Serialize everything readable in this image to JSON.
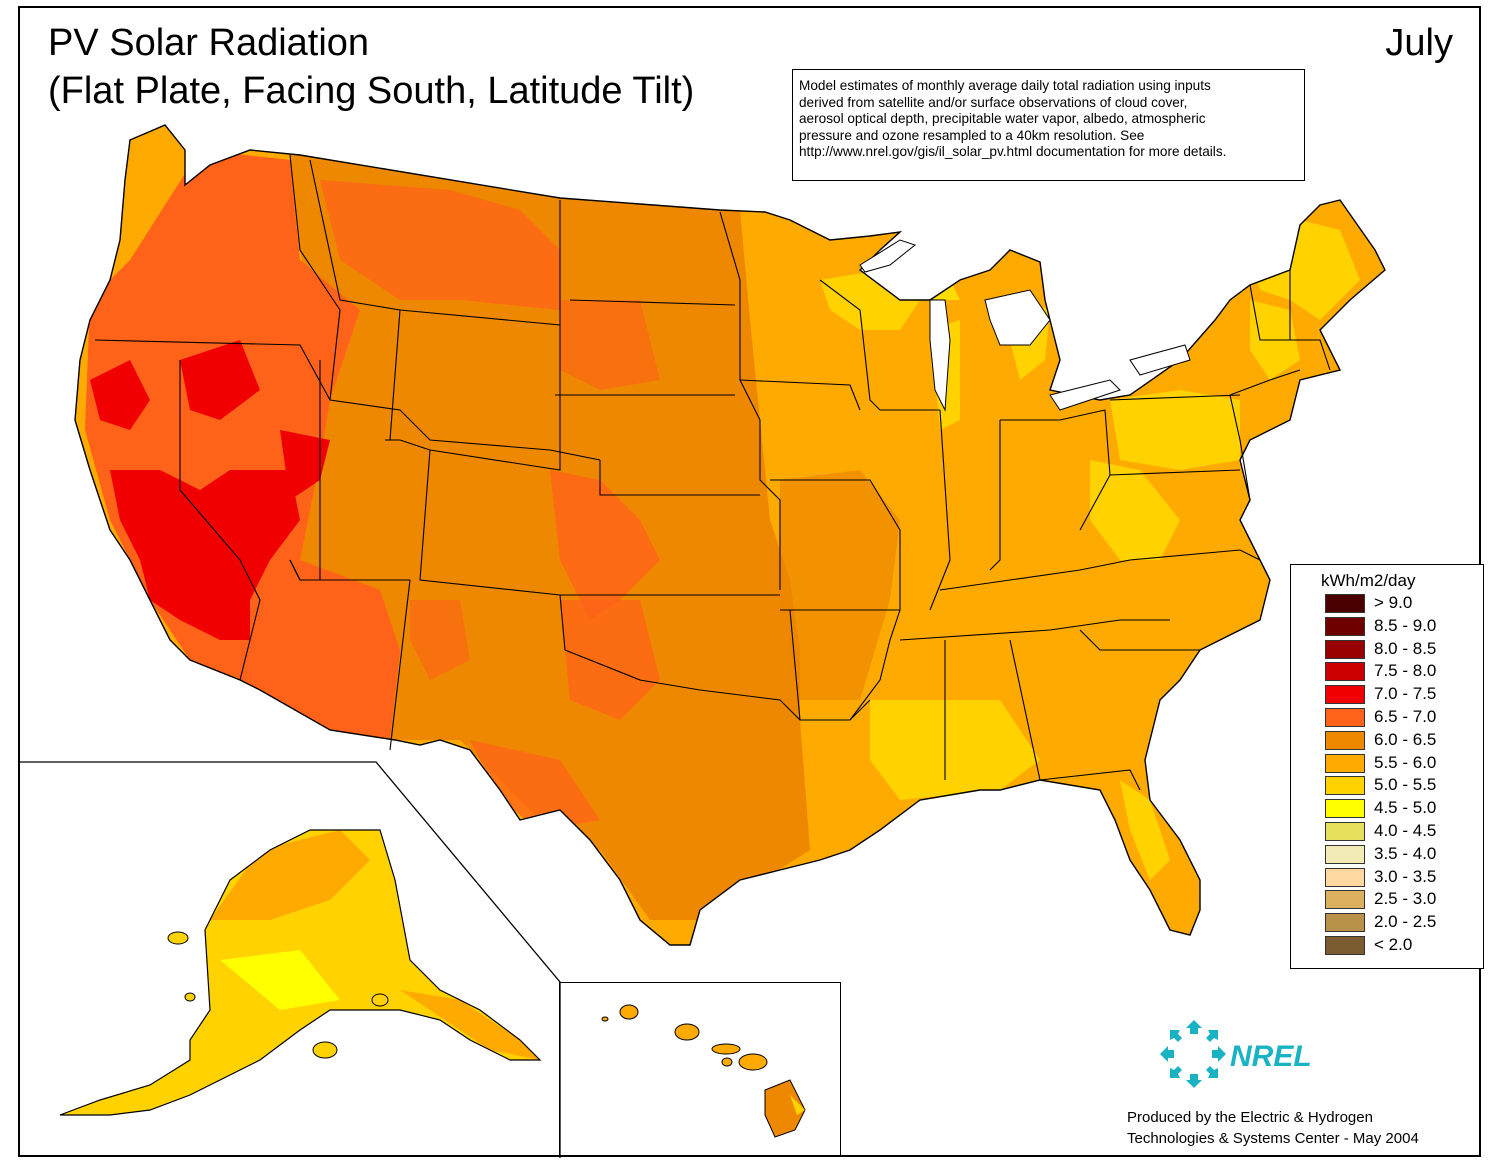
{
  "title": {
    "line1": "PV Solar Radiation",
    "line2": "(Flat Plate, Facing South, Latitude Tilt)",
    "month": "July"
  },
  "note": {
    "lines": [
      "Model estimates of monthly average daily total radiation using inputs",
      "derived from satellite and/or surface observations of cloud cover,",
      "aerosol optical depth, precipitable water vapor, albedo, atmospheric",
      "pressure and ozone resampled to a 40km resolution.  See",
      "http://www.nrel.gov/gis/il_solar_pv.html documentation for more details."
    ]
  },
  "legend": {
    "title": "kWh/m2/day",
    "items": [
      {
        "label": "> 9.0",
        "color": "#4a0000"
      },
      {
        "label": "8.5 - 9.0",
        "color": "#6e0000"
      },
      {
        "label": "8.0 - 8.5",
        "color": "#990000"
      },
      {
        "label": "7.5 - 8.0",
        "color": "#cc0000"
      },
      {
        "label": "7.0 - 7.5",
        "color": "#f00000"
      },
      {
        "label": "6.5 - 7.0",
        "color": "#ff6319"
      },
      {
        "label": "6.0 - 6.5",
        "color": "#ee8800"
      },
      {
        "label": "5.5 - 6.0",
        "color": "#ffaa00"
      },
      {
        "label": "5.0 - 5.5",
        "color": "#ffd200"
      },
      {
        "label": "4.5 - 5.0",
        "color": "#ffff00"
      },
      {
        "label": "4.0 - 4.5",
        "color": "#e6e05a"
      },
      {
        "label": "3.5 - 4.0",
        "color": "#f2ebb5"
      },
      {
        "label": "3.0 - 3.5",
        "color": "#ffd7a0"
      },
      {
        "label": "2.5 - 3.0",
        "color": "#ddb060"
      },
      {
        "label": "2.0 - 2.5",
        "color": "#b8914a"
      },
      {
        "label": "< 2.0",
        "color": "#7a5c30"
      }
    ]
  },
  "logo": {
    "text": "NREL",
    "color": "#19b3c4"
  },
  "credit": {
    "line1": "Produced by the Electric & Hydrogen",
    "line2": "Technologies & Systems Center - May 2004"
  }
}
